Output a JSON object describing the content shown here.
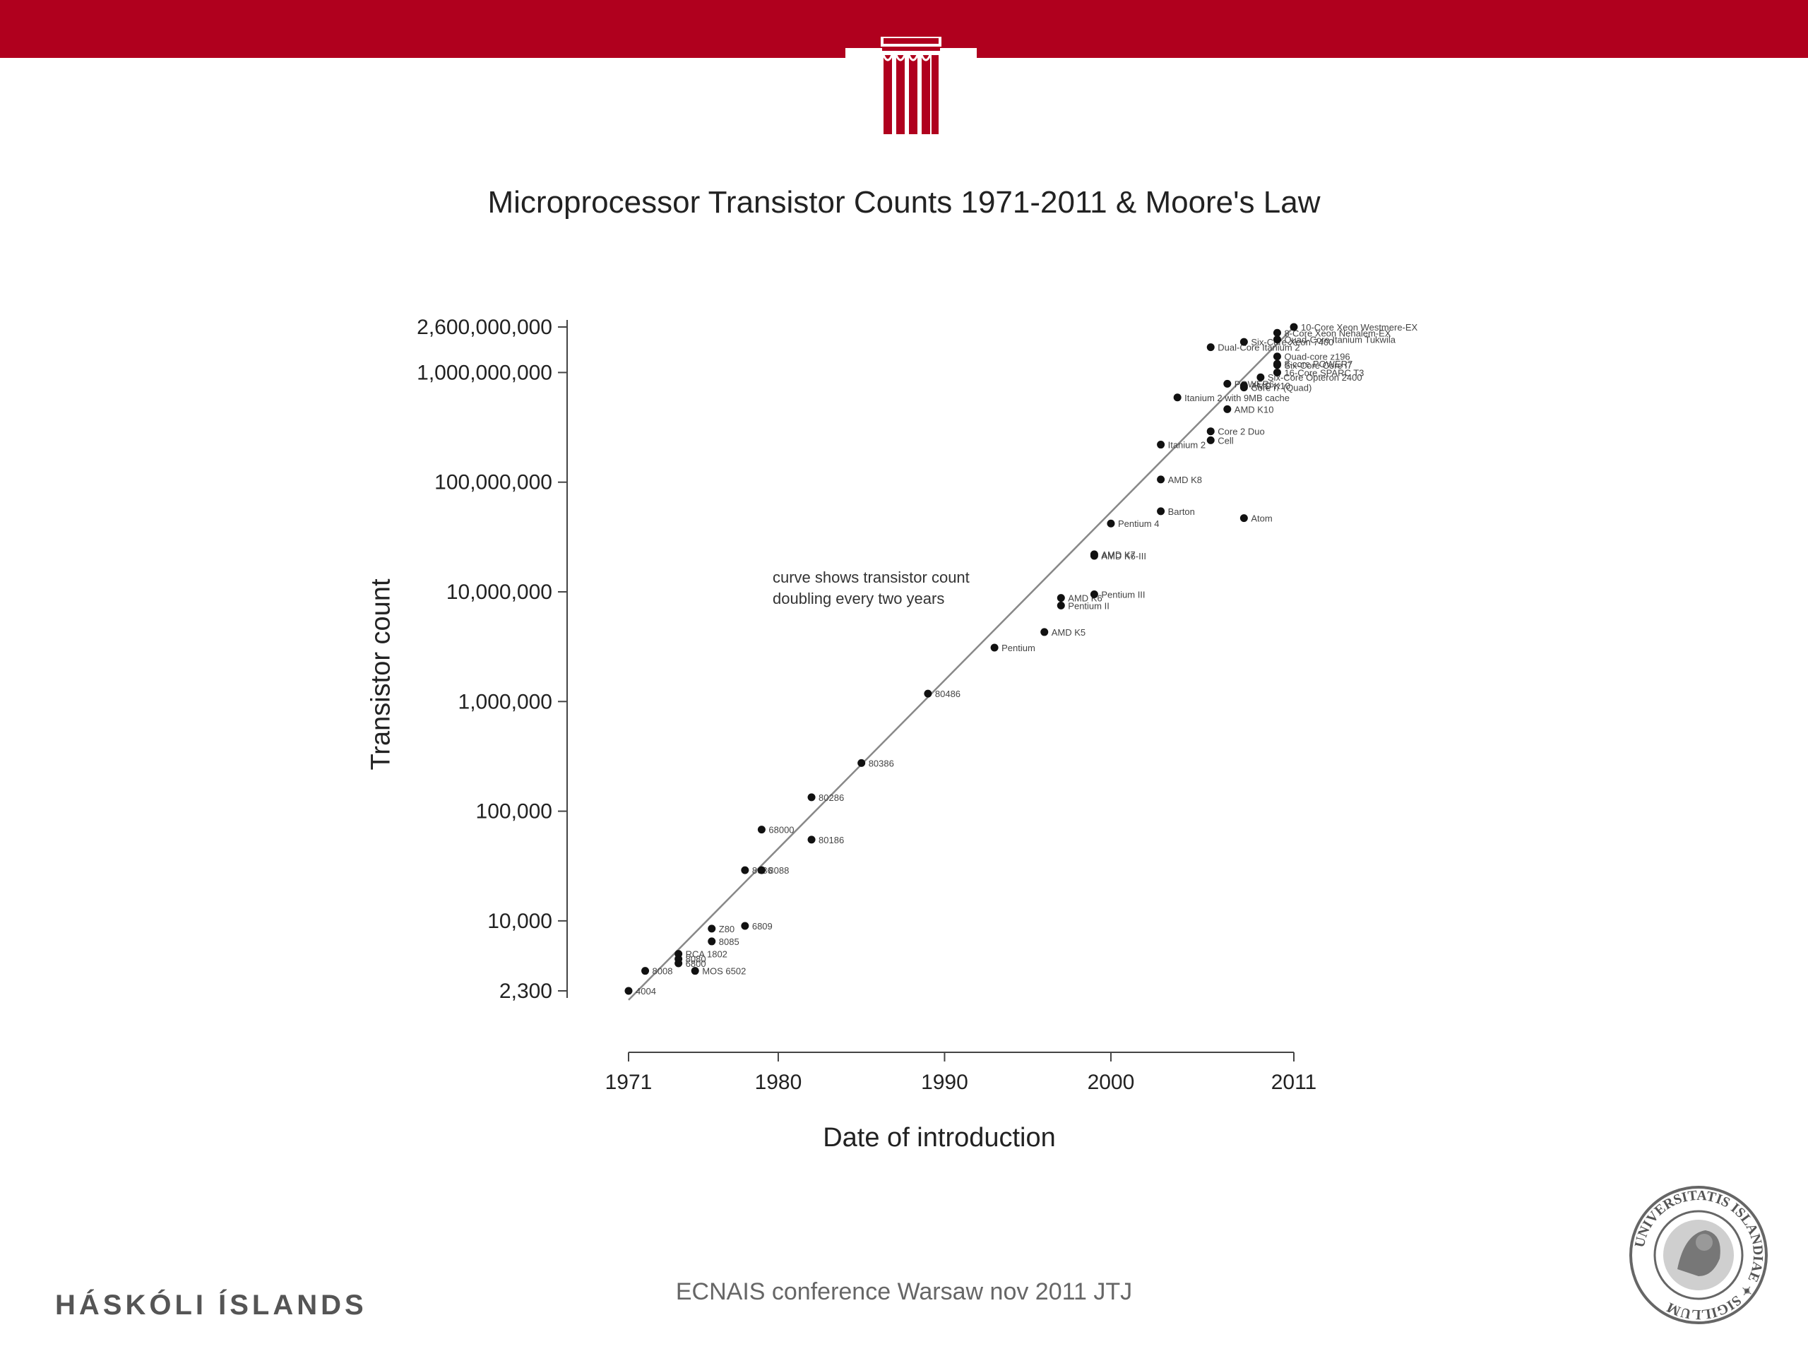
{
  "header": {
    "accent_color": "#b0001e",
    "logo_icon": "temple-column-icon"
  },
  "chart_data": {
    "type": "scatter",
    "title": "Microprocessor Transistor Counts 1971-2011 & Moore's Law",
    "xlabel": "Date of introduction",
    "ylabel": "Transistor count",
    "x_scale": "linear",
    "y_scale": "log",
    "xlim": [
      1971,
      2011
    ],
    "ylim": [
      2300,
      2600000000
    ],
    "x_ticks": [
      {
        "value": 1971,
        "label": "1971"
      },
      {
        "value": 1980,
        "label": "1980"
      },
      {
        "value": 1990,
        "label": "1990"
      },
      {
        "value": 2000,
        "label": "2000"
      },
      {
        "value": 2011,
        "label": "2011"
      }
    ],
    "y_ticks": [
      {
        "value": 2300,
        "label": "2,300"
      },
      {
        "value": 10000,
        "label": "10,000"
      },
      {
        "value": 100000,
        "label": "100,000"
      },
      {
        "value": 1000000,
        "label": "1,000,000"
      },
      {
        "value": 10000000,
        "label": "10,000,000"
      },
      {
        "value": 100000000,
        "label": "100,000,000"
      },
      {
        "value": 1000000000,
        "label": "1,000,000,000"
      },
      {
        "value": 2600000000,
        "label": "2,600,000,000"
      }
    ],
    "trend_line": {
      "x": [
        1971,
        2011
      ],
      "y": [
        1900,
        2600000000
      ]
    },
    "annotation": "curve shows transistor count doubling every two years",
    "grid": false,
    "points": [
      {
        "label": "4004",
        "x": 1971,
        "y": 2300
      },
      {
        "label": "8008",
        "x": 1972,
        "y": 3500
      },
      {
        "label": "8080",
        "x": 1974,
        "y": 4500
      },
      {
        "label": "6800",
        "x": 1974,
        "y": 4100
      },
      {
        "label": "RCA 1802",
        "x": 1974,
        "y": 5000
      },
      {
        "label": "MOS 6502",
        "x": 1975,
        "y": 3500
      },
      {
        "label": "8085",
        "x": 1976,
        "y": 6500
      },
      {
        "label": "Z80",
        "x": 1976,
        "y": 8500
      },
      {
        "label": "6809",
        "x": 1978,
        "y": 9000
      },
      {
        "label": "8086",
        "x": 1978,
        "y": 29000
      },
      {
        "label": "8088",
        "x": 1979,
        "y": 29000
      },
      {
        "label": "68000",
        "x": 1979,
        "y": 68000
      },
      {
        "label": "80186",
        "x": 1982,
        "y": 55000
      },
      {
        "label": "80286",
        "x": 1982,
        "y": 134000
      },
      {
        "label": "80386",
        "x": 1985,
        "y": 275000
      },
      {
        "label": "80486",
        "x": 1989,
        "y": 1180000
      },
      {
        "label": "Pentium",
        "x": 1993,
        "y": 3100000
      },
      {
        "label": "AMD K5",
        "x": 1996,
        "y": 4300000
      },
      {
        "label": "Pentium II",
        "x": 1997,
        "y": 7500000
      },
      {
        "label": "AMD K6",
        "x": 1997,
        "y": 8800000
      },
      {
        "label": "Pentium III",
        "x": 1999,
        "y": 9500000
      },
      {
        "label": "AMD K6-III",
        "x": 1999,
        "y": 21300000
      },
      {
        "label": "AMD K7",
        "x": 1999,
        "y": 22000000
      },
      {
        "label": "Pentium 4",
        "x": 2000,
        "y": 42000000
      },
      {
        "label": "Barton",
        "x": 2003,
        "y": 54300000
      },
      {
        "label": "AMD K8",
        "x": 2003,
        "y": 105900000
      },
      {
        "label": "Itanium 2",
        "x": 2003,
        "y": 220000000
      },
      {
        "label": "Cell",
        "x": 2006,
        "y": 241000000
      },
      {
        "label": "Core 2 Duo",
        "x": 2006,
        "y": 291000000
      },
      {
        "label": "Atom",
        "x": 2008,
        "y": 47000000
      },
      {
        "label": "Itanium 2 with 9MB cache",
        "x": 2004,
        "y": 592000000
      },
      {
        "label": "AMD K10",
        "x": 2007,
        "y": 463000000
      },
      {
        "label": "POWER6",
        "x": 2007,
        "y": 789000000
      },
      {
        "label": "Core i7 (Quad)",
        "x": 2008,
        "y": 731000000
      },
      {
        "label": "Six-Core Opteron 2400",
        "x": 2009,
        "y": 904000000
      },
      {
        "label": "AMD K10",
        "x": 2008,
        "y": 758000000
      },
      {
        "label": "Dual-Core Itanium 2",
        "x": 2006,
        "y": 1700000000
      },
      {
        "label": "Six-Core Xeon 7400",
        "x": 2008,
        "y": 1900000000
      },
      {
        "label": "Six-Core Core i7",
        "x": 2010,
        "y": 1170000000
      },
      {
        "label": "8-Core Xeon Nehalem-EX",
        "x": 2010,
        "y": 2300000000
      },
      {
        "label": "Quad-Core Itanium Tukwila",
        "x": 2010,
        "y": 2000000000
      },
      {
        "label": "Quad-core z196",
        "x": 2010,
        "y": 1400000000
      },
      {
        "label": "8-core POWER7",
        "x": 2010,
        "y": 1200000000
      },
      {
        "label": "10-Core Xeon Westmere-EX",
        "x": 2011,
        "y": 2600000000
      },
      {
        "label": "16-Core SPARC T3",
        "x": 2010,
        "y": 1000000000
      }
    ]
  },
  "footer": {
    "brand": "HÁSKÓLI ÍSLANDS",
    "caption": "ECNAIS conference Warsaw nov 2011 JTJ",
    "seal_icon": "university-seal-icon",
    "seal_text": "UNIVERSITATIS ISLANDIAE SIGILLUM"
  }
}
